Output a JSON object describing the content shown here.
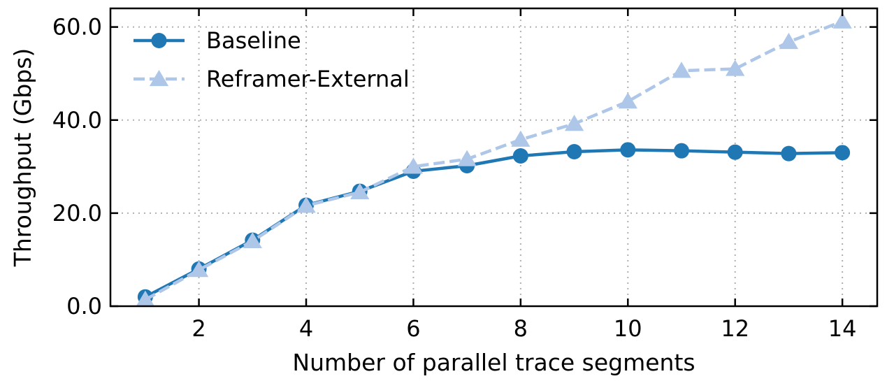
{
  "chart_data": {
    "type": "line",
    "xlabel": "Number of parallel trace segments",
    "ylabel": "Throughput (Gbps)",
    "xlim": [
      0.35,
      14.65
    ],
    "ylim": [
      0,
      64
    ],
    "x_ticks": [
      2,
      4,
      6,
      8,
      10,
      12,
      14
    ],
    "y_ticks": [
      0,
      20,
      40,
      60
    ],
    "y_tick_labels": [
      "0.0",
      "20.0",
      "40.0",
      "60.0"
    ],
    "grid": true,
    "legend_position": "top-left",
    "x": [
      1,
      2,
      3,
      4,
      5,
      6,
      7,
      8,
      9,
      10,
      11,
      12,
      13,
      14
    ],
    "series": [
      {
        "name": "Baseline",
        "marker": "circle",
        "line_style": "solid",
        "color": "#1f77b4",
        "values": [
          2.0,
          8.0,
          14.2,
          21.7,
          24.7,
          29.0,
          30.2,
          32.3,
          33.2,
          33.6,
          33.4,
          33.1,
          32.8,
          33.0
        ]
      },
      {
        "name": "Reframer-External",
        "marker": "triangle",
        "line_style": "dashed",
        "color": "#aec7e8",
        "values": [
          1.4,
          7.8,
          14.0,
          21.6,
          24.5,
          30.0,
          31.6,
          35.8,
          39.2,
          44.0,
          50.6,
          51.0,
          56.8,
          61.2
        ]
      }
    ]
  }
}
